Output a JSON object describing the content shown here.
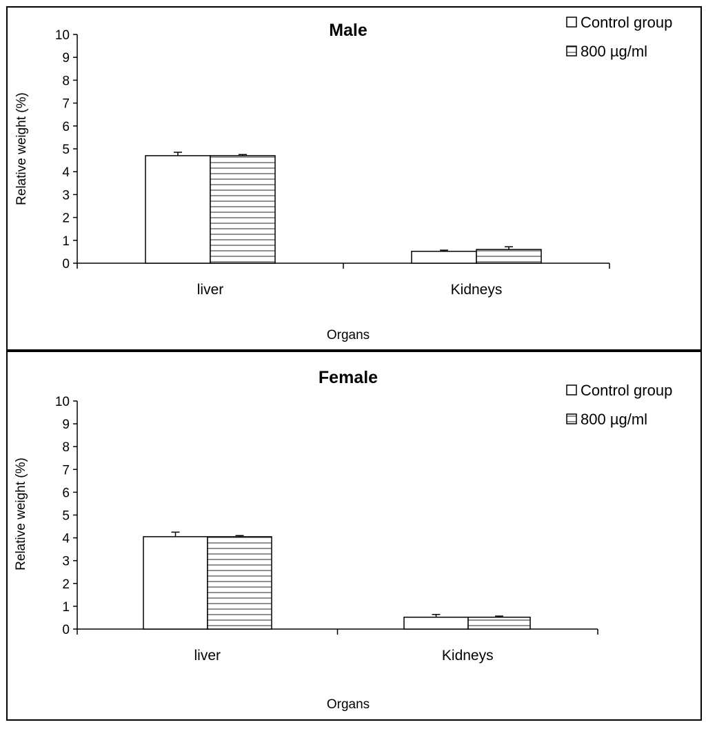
{
  "chart_data": [
    {
      "type": "bar",
      "title": "Male",
      "xlabel": "Organs",
      "ylabel": "Relative weight (%)",
      "ylim": [
        0,
        10
      ],
      "yticks": [
        0,
        1,
        2,
        3,
        4,
        5,
        6,
        7,
        8,
        9,
        10
      ],
      "grid": false,
      "legend_position": "top-right",
      "categories": [
        "liver",
        "Kidneys"
      ],
      "series": [
        {
          "name": "Control group",
          "pattern": "plain",
          "fill": "#ffffff",
          "values": [
            4.7,
            0.52
          ],
          "errors": [
            0.15,
            0.05
          ]
        },
        {
          "name": "800 µg/ml",
          "pattern": "horizontal-lines",
          "fill": "#ffffff",
          "values": [
            4.7,
            0.6
          ],
          "errors": [
            0.05,
            0.12
          ]
        }
      ]
    },
    {
      "type": "bar",
      "title": "Female",
      "xlabel": "Organs",
      "ylabel": "Relative weight (%)",
      "ylim": [
        0,
        10
      ],
      "yticks": [
        0,
        1,
        2,
        3,
        4,
        5,
        6,
        7,
        8,
        9,
        10
      ],
      "grid": false,
      "legend_position": "top-right",
      "categories": [
        "liver",
        "Kidneys"
      ],
      "series": [
        {
          "name": "Control group",
          "pattern": "plain",
          "fill": "#ffffff",
          "values": [
            4.05,
            0.52
          ],
          "errors": [
            0.2,
            0.12
          ]
        },
        {
          "name": "800 µg/ml",
          "pattern": "horizontal-lines",
          "fill": "#ffffff",
          "values": [
            4.05,
            0.52
          ],
          "errors": [
            0.05,
            0.05
          ]
        }
      ]
    }
  ]
}
